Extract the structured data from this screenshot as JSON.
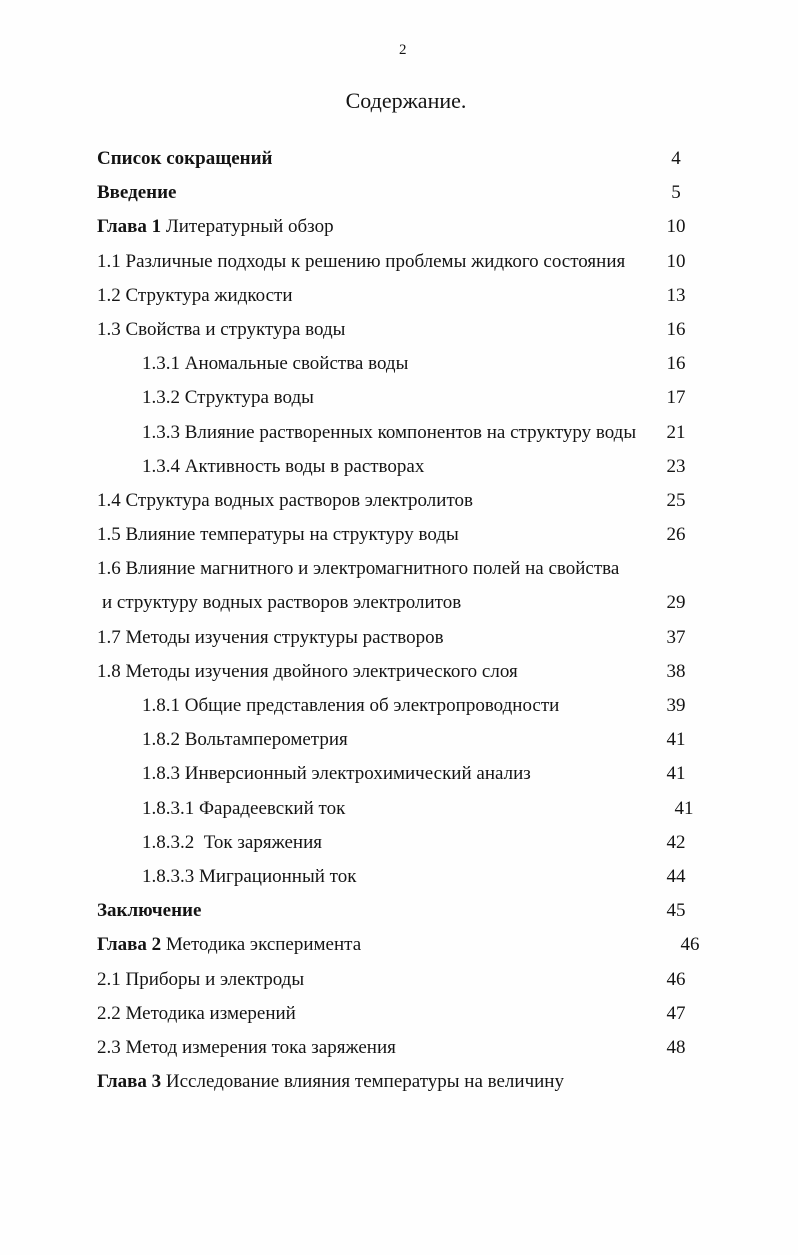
{
  "page": {
    "number": "2",
    "title": "Содержание."
  },
  "toc": {
    "entries": [
      {
        "bold": "Список сокращений",
        "rest": "",
        "page": "4"
      },
      {
        "bold": "Введение",
        "rest": "",
        "page": "5"
      },
      {
        "bold": "Глава 1",
        "rest": " Литературный обзор",
        "page": "10"
      },
      {
        "bold": "",
        "rest": "1.1 Различные подходы к решению проблемы жидкого состояния",
        "page": "10"
      },
      {
        "bold": "",
        "rest": "1.2 Структура жидкости",
        "page": "13"
      },
      {
        "bold": "",
        "rest": "1.3 Свойства и структура воды",
        "page": "16"
      },
      {
        "bold": "",
        "rest": "1.3.1 Аномальные свойства воды",
        "page": "16"
      },
      {
        "bold": "",
        "rest": "1.3.2 Структура воды",
        "page": "17"
      },
      {
        "bold": "",
        "rest": "1.3.3 Влияние растворенных компонентов на структуру воды",
        "page": "21"
      },
      {
        "bold": "",
        "rest": "1.3.4 Активность воды в растворах",
        "page": "23"
      },
      {
        "bold": "",
        "rest": "1.4 Структура водных растворов электролитов",
        "page": "25"
      },
      {
        "bold": "",
        "rest": "1.5 Влияние температуры на структуру воды",
        "page": "26"
      },
      {
        "bold": "",
        "rest": "1.6 Влияние магнитного и электромагнитного полей на свойства",
        "page": ""
      },
      {
        "bold": "",
        "rest": "и структуру водных растворов электролитов",
        "page": "29"
      },
      {
        "bold": "",
        "rest": "1.7 Методы изучения структуры растворов",
        "page": "37"
      },
      {
        "bold": "",
        "rest": "1.8 Методы изучения двойного электрического слоя",
        "page": "38"
      },
      {
        "bold": "",
        "rest": "1.8.1 Общие представления об электропроводности",
        "page": "39"
      },
      {
        "bold": "",
        "rest": "1.8.2 Вольтамперометрия",
        "page": "41"
      },
      {
        "bold": "",
        "rest": "1.8.3 Инверсионный электрохимический анализ",
        "page": "41"
      },
      {
        "bold": "",
        "rest": "1.8.3.1 Фарадеевский ток",
        "page": "41"
      },
      {
        "bold": "",
        "rest": "1.8.3.2  Ток заряжения",
        "page": "42"
      },
      {
        "bold": "",
        "rest": "1.8.3.3 Миграционный ток",
        "page": "44"
      },
      {
        "bold": "Заключение",
        "rest": "",
        "page": "45"
      },
      {
        "bold": "Глава 2",
        "rest": " Методика эксперимента",
        "page": "46"
      },
      {
        "bold": "",
        "rest": "2.1 Приборы и электроды",
        "page": "46"
      },
      {
        "bold": "",
        "rest": "2.2 Методика измерений",
        "page": "47"
      },
      {
        "bold": "",
        "rest": "2.3 Метод измерения тока заряжения",
        "page": "48"
      },
      {
        "bold": "Глава 3",
        "rest": " Исследование влияния температуры на величину",
        "page": ""
      }
    ]
  }
}
